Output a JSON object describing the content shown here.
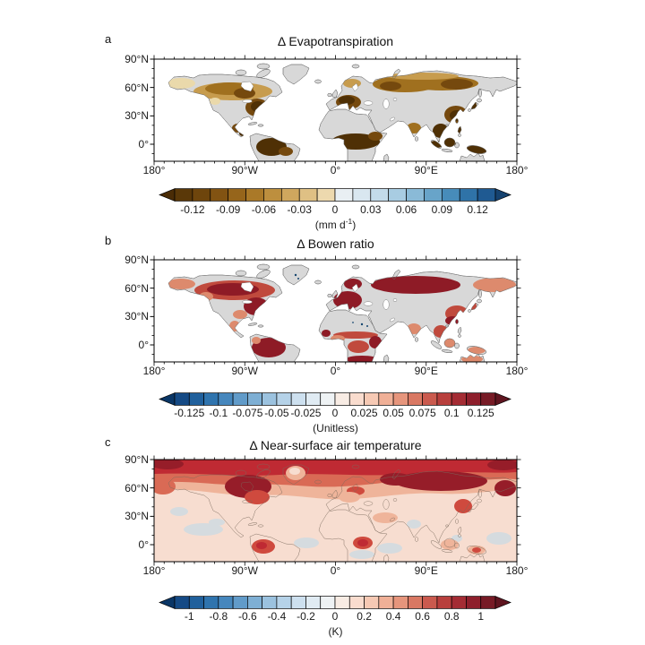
{
  "figure": {
    "background": "#ffffff"
  },
  "palette": {
    "ocean": "#ffffff",
    "land_gray": "#d8d8d8",
    "coast": "#6a6a6a",
    "coast_c": "#7a6a5c",
    "frame": "#000000",
    "a_dark": "#4f3005",
    "a_brown": "#75490e",
    "a_mid": "#a0701f",
    "a_tan": "#c79c4e",
    "a_light": "#ead9ab",
    "b_dark": "#8e1b26",
    "b_red": "#c04a3d",
    "b_salmon": "#dd8a6d",
    "b_navy": "#16466f",
    "c_base": "#f7ddd0",
    "c_salmon": "#efb49a",
    "c_mid": "#d96a55",
    "c_red": "#bf2a33",
    "c_red2": "#cf4a3e",
    "c_dark": "#961d29",
    "c_gray": "#d5dbdf"
  },
  "axis": {
    "map_w": 405,
    "map_h": 114,
    "minor_dx": 11.25,
    "minor_dy": 10.556,
    "major_xs": [
      0,
      101.25,
      202.5,
      303.75,
      405
    ],
    "major_ys": [
      0,
      31.667,
      63.333,
      95
    ],
    "minor_len": 2.5,
    "major_len": 4.5
  },
  "panels": [
    {
      "letter": "a",
      "title": "Δ Evapotranspiration",
      "ytick_labels": [
        "90°N",
        "60°N",
        "30°N",
        "0°"
      ],
      "xtick_labels": [
        "180°",
        "90°W",
        "0°",
        "90°E",
        "180°"
      ],
      "colorbar": {
        "unit_prefix": "(mm d",
        "unit_sup": "-1",
        "unit_suffix": ")",
        "tick_labels": [
          "-0.12",
          "-0.09",
          "-0.06",
          "-0.03",
          "0",
          "0.03",
          "0.06",
          "0.09",
          "0.12"
        ],
        "label_boundaries": [
          1,
          3,
          5,
          7,
          9,
          11,
          13,
          15,
          17
        ],
        "n_segments": 18,
        "arrow_left": "#4a2c06",
        "arrow_right": "#15426f",
        "colors": [
          "#5a3808",
          "#6e450c",
          "#825312",
          "#96651b",
          "#aa7928",
          "#bd8f3e",
          "#cfa75e",
          "#dfc084",
          "#edd9ae",
          "#e9eff3",
          "#d9e7f0",
          "#c3dbea",
          "#a8cce2",
          "#8abad7",
          "#68a4c9",
          "#478cba",
          "#2f73a8",
          "#1f5a92"
        ]
      }
    },
    {
      "letter": "b",
      "title": "Δ Bowen ratio",
      "ytick_labels": [
        "90°N",
        "60°N",
        "30°N",
        "0°"
      ],
      "xtick_labels": [
        "180°",
        "90°W",
        "0°",
        "90°E",
        "180°"
      ],
      "colorbar": {
        "unit_prefix": "(Unitless)",
        "unit_sup": "",
        "unit_suffix": "",
        "tick_labels": [
          "-0.125",
          "-0.1",
          "-0.075",
          "-0.05",
          "-0.025",
          "0",
          "0.025",
          "0.05",
          "0.075",
          "0.1",
          "0.125"
        ],
        "label_boundaries": [
          1,
          3,
          5,
          7,
          9,
          11,
          13,
          15,
          17,
          19,
          21
        ],
        "n_segments": 22,
        "arrow_left": "#0a3666",
        "arrow_right": "#5f1520",
        "colors": [
          "#154a85",
          "#20609c",
          "#2f74ae",
          "#4687bd",
          "#619bc9",
          "#7eafd4",
          "#9bc2df",
          "#b5d2e8",
          "#cde0ef",
          "#e0ebf3",
          "#eef2f4",
          "#f8ece4",
          "#f9dcce",
          "#f6c9b4",
          "#f0b097",
          "#e6957c",
          "#d97863",
          "#ca5a4e",
          "#b83f3d",
          "#a42c34",
          "#8e1f2c",
          "#771b26"
        ]
      }
    },
    {
      "letter": "c",
      "title": "Δ Near-surface air temperature",
      "ytick_labels": [
        "90°N",
        "60°N",
        "30°N",
        "0°"
      ],
      "xtick_labels": [
        "180°",
        "90°W",
        "0°",
        "90°E",
        "180°"
      ],
      "colorbar": {
        "unit_prefix": "(K)",
        "unit_sup": "",
        "unit_suffix": "",
        "tick_labels": [
          "-1",
          "-0.8",
          "-0.6",
          "-0.4",
          "-0.2",
          "0",
          "0.2",
          "0.4",
          "0.6",
          "0.8",
          "1"
        ],
        "label_boundaries": [
          1,
          3,
          5,
          7,
          9,
          11,
          13,
          15,
          17,
          19,
          21
        ],
        "n_segments": 22,
        "arrow_left": "#0a3666",
        "arrow_right": "#5f1520",
        "colors": [
          "#154a85",
          "#20609c",
          "#2f74ae",
          "#4687bd",
          "#619bc9",
          "#7eafd4",
          "#9bc2df",
          "#b5d2e8",
          "#cde0ef",
          "#e0ebf3",
          "#eef2f4",
          "#f8ece4",
          "#f9dcce",
          "#f6c9b4",
          "#f0b097",
          "#e6957c",
          "#d97863",
          "#ca5a4e",
          "#b83f3d",
          "#a42c34",
          "#8e1f2c",
          "#771b26"
        ]
      }
    }
  ],
  "chart_data": [
    {
      "type": "heatmap",
      "panel": "a",
      "title": "Δ Evapotranspiration",
      "units": "mm d-1",
      "projection": "equirectangular",
      "lon_range": [
        -180,
        180
      ],
      "lat_range": [
        -18,
        90
      ],
      "xticks": [
        "180°",
        "90°W",
        "0°",
        "90°E",
        "180°"
      ],
      "yticks": [
        "90°N",
        "60°N",
        "30°N",
        "0°"
      ],
      "colorbar_ticks": [
        -0.12,
        -0.09,
        -0.06,
        -0.03,
        0,
        0.03,
        0.06,
        0.09,
        0.12
      ],
      "colorbar_range": [
        -0.135,
        0.135
      ],
      "colormap": "brown (negative) to blue (positive), gray = no data, ocean masked white",
      "regional_values": [
        {
          "region": "Alaska",
          "value": -0.03
        },
        {
          "region": "southern Canada",
          "value": -0.08
        },
        {
          "region": "eastern United States",
          "value": -0.13
        },
        {
          "region": "Mexico / Central America",
          "value": -0.1
        },
        {
          "region": "northern South America (Amazon)",
          "value": -0.13
        },
        {
          "region": "Europe",
          "value": -0.12
        },
        {
          "region": "Scandinavia",
          "value": -0.05
        },
        {
          "region": "Siberia belt 50-65N",
          "value": -0.08
        },
        {
          "region": "East Asia / China / Japan",
          "value": -0.13
        },
        {
          "region": "India",
          "value": -0.06
        },
        {
          "region": "Southeast Asia / Indonesia",
          "value": -0.13
        },
        {
          "region": "Sahel and Congo basin",
          "value": -0.13
        },
        {
          "region": "Sahara / Arabia / central Asia / Greenland",
          "value": 0.0
        }
      ]
    },
    {
      "type": "heatmap",
      "panel": "b",
      "title": "Δ Bowen ratio",
      "units": "Unitless",
      "projection": "equirectangular",
      "lon_range": [
        -180,
        180
      ],
      "lat_range": [
        -18,
        90
      ],
      "xticks": [
        "180°",
        "90°W",
        "0°",
        "90°E",
        "180°"
      ],
      "yticks": [
        "90°N",
        "60°N",
        "30°N",
        "0°"
      ],
      "colorbar_ticks": [
        -0.125,
        -0.1,
        -0.075,
        -0.05,
        -0.025,
        0,
        0.025,
        0.05,
        0.075,
        0.1,
        0.125
      ],
      "colorbar_range": [
        -0.1375,
        0.1375
      ],
      "colormap": "blue (negative) to red (positive), gray = no data, ocean masked white",
      "regional_values": [
        {
          "region": "Alaska",
          "value": 0.05
        },
        {
          "region": "boreal Canada",
          "value": 0.12
        },
        {
          "region": "eastern United States",
          "value": 0.12
        },
        {
          "region": "northern South America",
          "value": 0.12
        },
        {
          "region": "Europe / Scandinavia",
          "value": 0.12
        },
        {
          "region": "Siberia",
          "value": 0.11
        },
        {
          "region": "far-east Russia",
          "value": 0.06
        },
        {
          "region": "East Asia / China",
          "value": 0.09
        },
        {
          "region": "India",
          "value": 0.05
        },
        {
          "region": "Sahel / East Africa",
          "value": 0.11
        },
        {
          "region": "Congo basin",
          "value": 0.08
        },
        {
          "region": "Sahara / Arabia / central Asia / Greenland",
          "value": 0.0
        },
        {
          "region": "isolated Greenland and Sahara grid cells",
          "value": -0.1
        }
      ]
    },
    {
      "type": "heatmap",
      "panel": "c",
      "title": "Δ Near-surface air temperature",
      "units": "K",
      "projection": "equirectangular",
      "lon_range": [
        -180,
        180
      ],
      "lat_range": [
        -18,
        90
      ],
      "xticks": [
        "180°",
        "90°W",
        "0°",
        "90°E",
        "180°"
      ],
      "yticks": [
        "90°N",
        "60°N",
        "30°N",
        "0°"
      ],
      "colorbar_ticks": [
        -1,
        -0.8,
        -0.6,
        -0.4,
        -0.2,
        0,
        0.2,
        0.4,
        0.6,
        0.8,
        1
      ],
      "colorbar_range": [
        -1.1,
        1.1
      ],
      "colormap": "blue (negative) to red (positive), whole field shaded including ocean",
      "regional_values": [
        {
          "region": "Arctic 70-90N",
          "value": 1.0
        },
        {
          "region": "boreal Canada / Hudson Bay region",
          "value": 1.0
        },
        {
          "region": "Siberia",
          "value": 1.0
        },
        {
          "region": "Greenland",
          "value": 0.4
        },
        {
          "region": "mid-latitude NH continents",
          "value": 0.6
        },
        {
          "region": "NH oceans 30-60N",
          "value": 0.3
        },
        {
          "region": "tropical oceans",
          "value": 0.15
        },
        {
          "region": "scattered ocean patches",
          "value": -0.1
        },
        {
          "region": "equatorial Africa",
          "value": 0.7
        },
        {
          "region": "northern South America",
          "value": 0.6
        },
        {
          "region": "India",
          "value": 0.1
        }
      ]
    }
  ]
}
